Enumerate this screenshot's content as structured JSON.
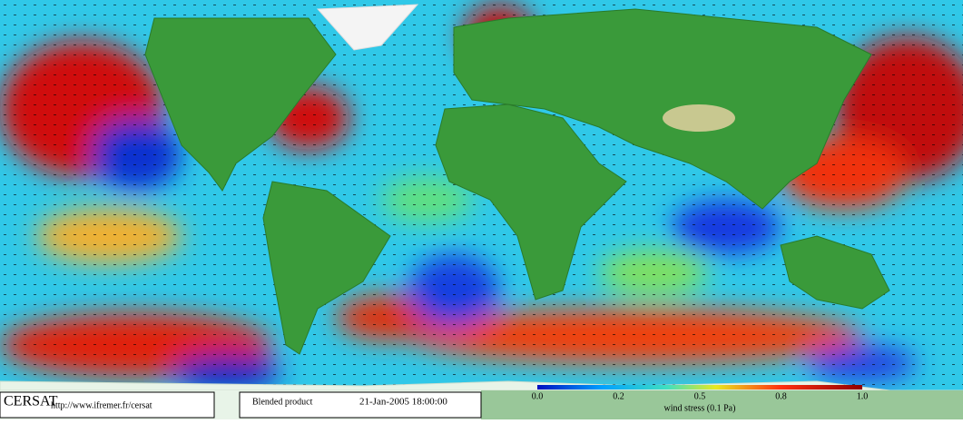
{
  "logo": "CERSAT",
  "url": "http://www.ifremer.fr/cersat",
  "product": "Blended product",
  "datetime": "21-Jan-2005 18:00:00",
  "colorbar": {
    "tick_labels": [
      "0.0",
      "0.2",
      "0.5",
      "0.8",
      "1.0"
    ],
    "title": "wind stress (0.1 Pa)"
  }
}
